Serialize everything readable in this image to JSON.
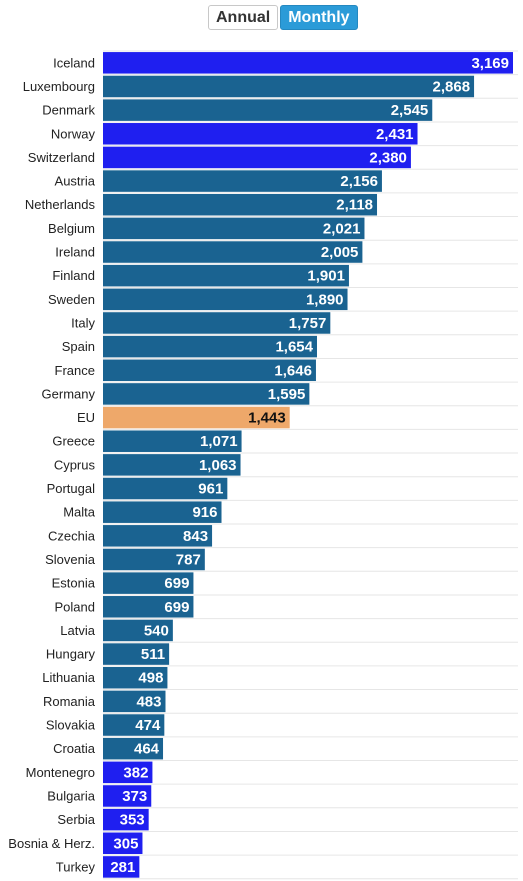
{
  "toggle": {
    "annual_label": "Annual",
    "monthly_label": "Monthly",
    "active": "Monthly"
  },
  "colors": {
    "default_bar": "#1a6391",
    "highlight_bar": "#1f1ff0",
    "eu_bar": "#eea86a",
    "gridline": "#e6e6e6"
  },
  "chart_data": {
    "type": "bar",
    "orientation": "horizontal",
    "title": "",
    "xlabel": "",
    "ylabel": "",
    "grid": true,
    "categories": [
      "Iceland",
      "Luxembourg",
      "Denmark",
      "Norway",
      "Switzerland",
      "Austria",
      "Netherlands",
      "Belgium",
      "Ireland",
      "Finland",
      "Sweden",
      "Italy",
      "Spain",
      "France",
      "Germany",
      "EU",
      "Greece",
      "Cyprus",
      "Portugal",
      "Malta",
      "Czechia",
      "Slovenia",
      "Estonia",
      "Poland",
      "Latvia",
      "Hungary",
      "Lithuania",
      "Romania",
      "Slovakia",
      "Croatia",
      "Montenegro",
      "Bulgaria",
      "Serbia",
      "Bosnia & Herz.",
      "Turkey"
    ],
    "values": [
      3169,
      2868,
      2545,
      2431,
      2380,
      2156,
      2118,
      2021,
      2005,
      1901,
      1890,
      1757,
      1654,
      1646,
      1595,
      1443,
      1071,
      1063,
      961,
      916,
      843,
      787,
      699,
      699,
      540,
      511,
      498,
      483,
      474,
      464,
      382,
      373,
      353,
      305,
      281
    ],
    "value_labels": [
      "3,169",
      "2,868",
      "2,545",
      "2,431",
      "2,380",
      "2,156",
      "2,118",
      "2,021",
      "2,005",
      "1,901",
      "1,890",
      "1,757",
      "1,654",
      "1,646",
      "1,595",
      "1,443",
      "1,071",
      "1,063",
      "961",
      "916",
      "843",
      "787",
      "699",
      "699",
      "540",
      "511",
      "498",
      "483",
      "474",
      "464",
      "382",
      "373",
      "353",
      "305",
      "281"
    ],
    "bar_color_group": [
      "highlight",
      "default",
      "default",
      "highlight",
      "highlight",
      "default",
      "default",
      "default",
      "default",
      "default",
      "default",
      "default",
      "default",
      "default",
      "default",
      "eu",
      "default",
      "default",
      "default",
      "default",
      "default",
      "default",
      "default",
      "default",
      "default",
      "default",
      "default",
      "default",
      "default",
      "default",
      "highlight",
      "highlight",
      "highlight",
      "highlight",
      "highlight"
    ]
  }
}
